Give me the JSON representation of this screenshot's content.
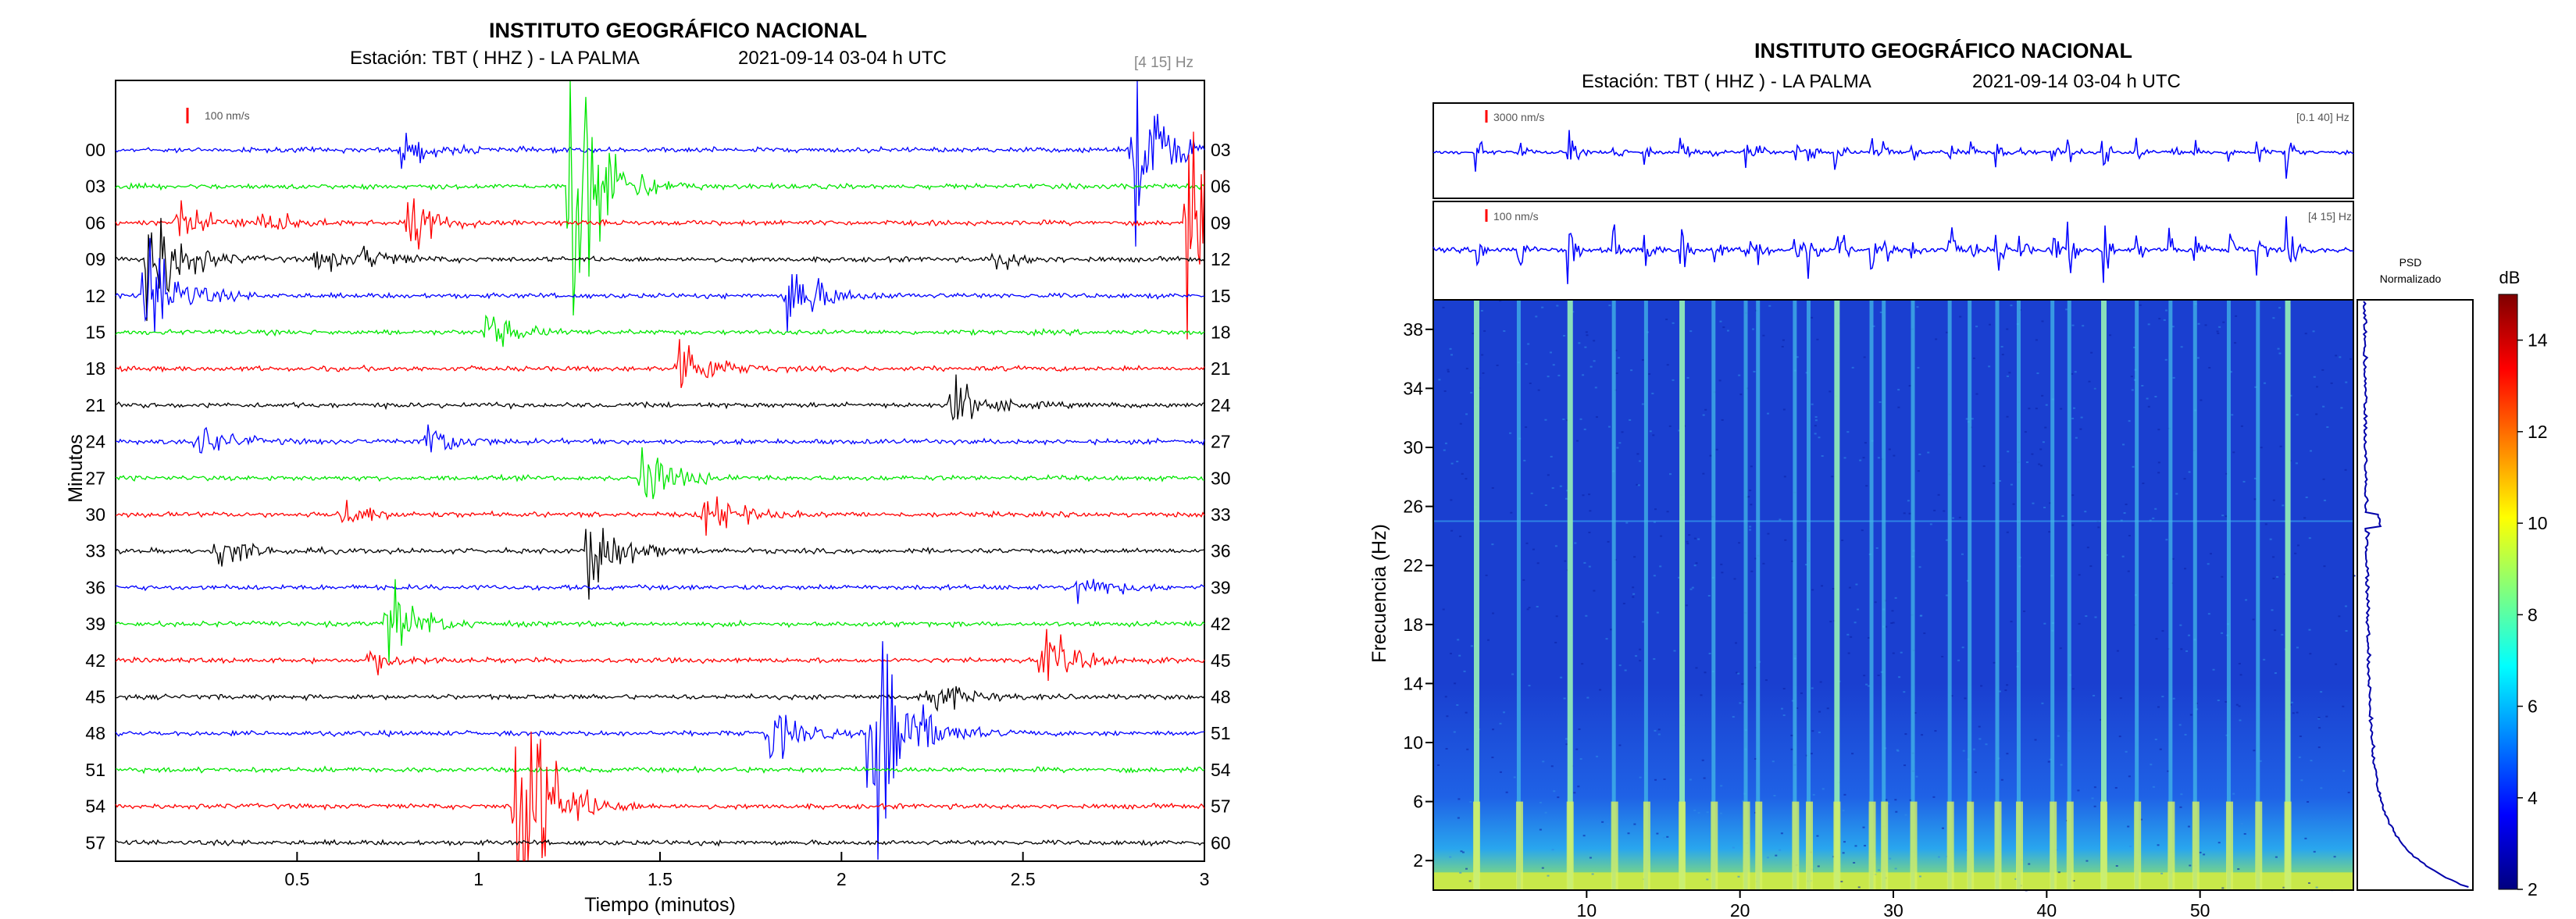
{
  "accent_colors": {
    "red": "#ff0000",
    "green": "#00e600",
    "black": "#000000",
    "blue": "#0000ff"
  },
  "chart_data": [
    {
      "type": "line",
      "title": "INSTITUTO GEOGRÁFICO NACIONAL",
      "station": "Estación:  TBT ( HHZ ) - LA PALMA",
      "date": "2021-09-14  03-04 h UTC",
      "band": "[4 15] Hz",
      "scale_label": "100 nm/s",
      "xlabel": "Tiempo (minutos)",
      "ylabel": "Minutos",
      "xlim": [
        0,
        3
      ],
      "x_ticks": [
        "0.5",
        "1",
        "1.5",
        "2",
        "2.5",
        "3"
      ],
      "left_labels": [
        "00",
        "03",
        "06",
        "09",
        "12",
        "15",
        "18",
        "21",
        "24",
        "27",
        "30",
        "33",
        "36",
        "39",
        "42",
        "45",
        "48",
        "51",
        "54",
        "57"
      ],
      "right_labels": [
        "03",
        "06",
        "09",
        "12",
        "15",
        "18",
        "21",
        "24",
        "27",
        "30",
        "33",
        "36",
        "39",
        "42",
        "45",
        "48",
        "51",
        "54",
        "57",
        "60"
      ],
      "trace_colors": [
        "blue",
        "green",
        "red",
        "black"
      ],
      "events": [
        {
          "x": 0.08,
          "trace": 3,
          "amp": 110
        },
        {
          "x": 0.08,
          "trace": 4,
          "amp": 90
        },
        {
          "x": 0.17,
          "trace": 2,
          "amp": 30
        },
        {
          "x": 0.22,
          "trace": 8,
          "amp": 28
        },
        {
          "x": 0.28,
          "trace": 11,
          "amp": 26
        },
        {
          "x": 0.4,
          "trace": 2,
          "amp": 18
        },
        {
          "x": 0.55,
          "trace": 3,
          "amp": 18
        },
        {
          "x": 0.62,
          "trace": 10,
          "amp": 22
        },
        {
          "x": 0.68,
          "trace": 3,
          "amp": 15
        },
        {
          "x": 0.75,
          "trace": 13,
          "amp": 60
        },
        {
          "x": 0.7,
          "trace": 14,
          "amp": 18
        },
        {
          "x": 0.78,
          "trace": 0,
          "amp": 26
        },
        {
          "x": 0.8,
          "trace": 2,
          "amp": 40
        },
        {
          "x": 0.85,
          "trace": 8,
          "amp": 30
        },
        {
          "x": 1.02,
          "trace": 5,
          "amp": 28
        },
        {
          "x": 1.1,
          "trace": 18,
          "amp": 250
        },
        {
          "x": 1.25,
          "trace": 1,
          "amp": 240
        },
        {
          "x": 1.3,
          "trace": 11,
          "amp": 70
        },
        {
          "x": 1.45,
          "trace": 9,
          "amp": 45
        },
        {
          "x": 1.55,
          "trace": 6,
          "amp": 50
        },
        {
          "x": 1.62,
          "trace": 10,
          "amp": 40
        },
        {
          "x": 1.8,
          "trace": 16,
          "amp": 40
        },
        {
          "x": 1.85,
          "trace": 4,
          "amp": 60
        },
        {
          "x": 2.08,
          "trace": 16,
          "amp": 250
        },
        {
          "x": 2.22,
          "trace": 15,
          "amp": 35
        },
        {
          "x": 2.3,
          "trace": 7,
          "amp": 40
        },
        {
          "x": 2.42,
          "trace": 3,
          "amp": 15
        },
        {
          "x": 2.55,
          "trace": 14,
          "amp": 45
        },
        {
          "x": 2.65,
          "trace": 12,
          "amp": 25
        },
        {
          "x": 2.8,
          "trace": 0,
          "amp": 130
        },
        {
          "x": 2.95,
          "trace": 2,
          "amp": 140
        }
      ]
    },
    {
      "type": "heatmap",
      "title": "INSTITUTO GEOGRÁFICO NACIONAL",
      "station": "Estación:  TBT ( HHZ ) - LA PALMA",
      "date": "2021-09-14  03-04 h UTC",
      "trace_top": {
        "band": "[0.1 40] Hz",
        "scale_label": "3000 nm/s"
      },
      "trace_mid": {
        "band": "[4 15] Hz",
        "scale_label": "100 nm/s"
      },
      "ylabel": "Frecuencia (Hz)",
      "ylim": [
        0,
        40
      ],
      "xlim": [
        0,
        60
      ],
      "y_ticks": [
        "2",
        "6",
        "10",
        "14",
        "18",
        "22",
        "26",
        "30",
        "34",
        "38"
      ],
      "x_ticks": [
        "10",
        "20",
        "30",
        "40",
        "50"
      ],
      "psd_label": [
        "PSD",
        "Normalizado"
      ],
      "colorbar_label": "dB",
      "colorbar_ticks": [
        "2",
        "4",
        "6",
        "8",
        "10",
        "12",
        "14"
      ],
      "colorbar_range": [
        2,
        15
      ],
      "event_minutes": [
        2.8,
        5.6,
        8.9,
        11.8,
        13.9,
        16.2,
        18.3,
        20.4,
        21.2,
        23.6,
        24.5,
        26.3,
        28.6,
        29.4,
        31.3,
        33.7,
        35.0,
        36.8,
        38.2,
        40.4,
        41.5,
        43.7,
        45.9,
        48.1,
        49.7,
        51.9,
        53.8,
        55.7
      ],
      "strong_events": [
        2.8,
        8.9,
        16.2,
        26.3,
        37.9,
        43.7,
        55.7
      ]
    }
  ]
}
